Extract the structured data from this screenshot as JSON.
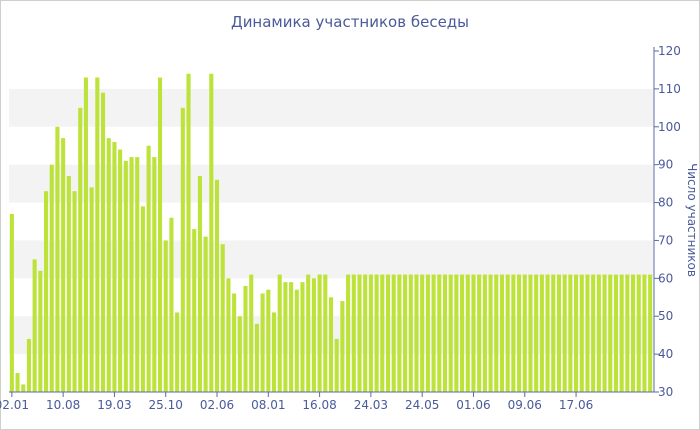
{
  "chart_data": {
    "type": "bar",
    "title": "Динамика участников беседы",
    "ylabel": "Число участников",
    "xlabel": "",
    "ylim": [
      30,
      120
    ],
    "yticks": [
      30,
      40,
      50,
      60,
      70,
      80,
      90,
      100,
      110,
      120
    ],
    "y_axis_position": "right",
    "grid": "alternating horizontal bands",
    "bar_color": "#bde33a",
    "band_color": "#f3f3f3",
    "text_color": "#4a5a9a",
    "x_tick_labels": [
      {
        "label": "02.01",
        "index": 0
      },
      {
        "label": "10.08",
        "index": 9
      },
      {
        "label": "19.03",
        "index": 18
      },
      {
        "label": "25.10",
        "index": 27
      },
      {
        "label": "02.06",
        "index": 36
      },
      {
        "label": "08.01",
        "index": 45
      },
      {
        "label": "16.08",
        "index": 54
      },
      {
        "label": "24.03",
        "index": 63
      },
      {
        "label": "24.05",
        "index": 72
      },
      {
        "label": "01.06",
        "index": 81
      },
      {
        "label": "09.06",
        "index": 90
      },
      {
        "label": "17.06",
        "index": 99
      }
    ],
    "values": [
      77,
      35,
      32,
      44,
      65,
      62,
      83,
      90,
      100,
      97,
      87,
      83,
      105,
      113,
      84,
      113,
      109,
      97,
      96,
      94,
      91,
      92,
      92,
      79,
      95,
      92,
      113,
      70,
      76,
      51,
      105,
      114,
      73,
      87,
      71,
      114,
      86,
      69,
      60,
      56,
      50,
      58,
      61,
      48,
      56,
      57,
      51,
      61,
      59,
      59,
      57,
      59,
      61,
      60,
      61,
      61,
      55,
      44,
      54,
      61,
      61,
      61,
      61,
      61,
      61,
      61,
      61,
      61,
      61,
      61,
      61,
      61,
      61,
      61,
      61,
      61,
      61,
      61,
      61,
      61,
      61,
      61,
      61,
      61,
      61,
      61,
      61,
      61,
      61,
      61,
      61,
      61,
      61,
      61,
      61,
      61,
      61,
      61,
      61,
      61,
      61,
      61,
      61,
      61,
      61,
      61,
      61,
      61,
      61,
      61,
      61,
      61,
      61
    ]
  }
}
